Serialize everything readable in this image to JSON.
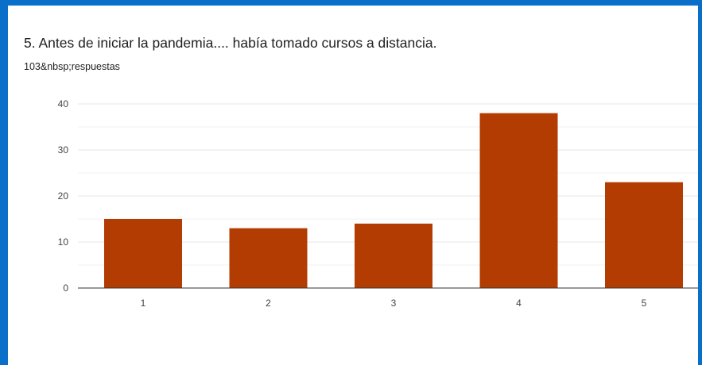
{
  "question": {
    "title": "5. Antes de iniciar la pandemia.... había tomado cursos a distancia.",
    "responses": "103&nbsp;respuestas"
  },
  "colors": {
    "frame": "#0a6fc9",
    "bar": "#b33c03",
    "grid": "#e6e6e6",
    "axis": "#333333"
  },
  "chart_data": {
    "type": "bar",
    "title": "5. Antes de iniciar la pandemia.... había tomado cursos a distancia.",
    "subtitle": "103&nbsp;respuestas",
    "categories": [
      "1",
      "2",
      "3",
      "4",
      "5"
    ],
    "values": [
      15,
      13,
      14,
      38,
      23
    ],
    "xlabel": "",
    "ylabel": "",
    "ylim": [
      0,
      40
    ],
    "yticks": [
      0,
      10,
      20,
      30,
      40
    ],
    "grid": true,
    "legend": "none"
  }
}
